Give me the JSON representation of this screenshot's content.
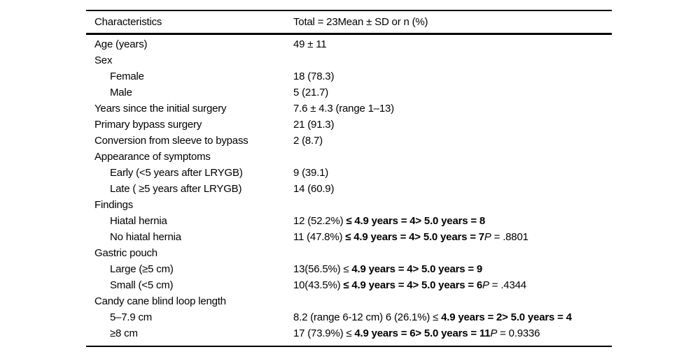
{
  "colors": {
    "background": "#ffffff",
    "text": "#000000",
    "rule": "#000000"
  },
  "table": {
    "header": {
      "col1": "Characteristics",
      "col2": "Total = 23Mean ± SD or n (%)"
    },
    "rows": [
      {
        "label": "Age (years)",
        "indent": 0,
        "value": [
          {
            "text": "49 ± 11"
          }
        ]
      },
      {
        "label": "Sex",
        "indent": 0,
        "value": []
      },
      {
        "label": "Female",
        "indent": 1,
        "value": [
          {
            "text": "18 (78.3)"
          }
        ]
      },
      {
        "label": "Male",
        "indent": 1,
        "value": [
          {
            "text": "5 (21.7)"
          }
        ]
      },
      {
        "label": "Years since the initial surgery",
        "indent": 0,
        "value": [
          {
            "text": "7.6 ± 4.3 (range 1–13)"
          }
        ]
      },
      {
        "label": "Primary bypass surgery",
        "indent": 0,
        "value": [
          {
            "text": "21 (91.3)"
          }
        ]
      },
      {
        "label": "Conversion from sleeve to bypass",
        "indent": 0,
        "value": [
          {
            "text": "2 (8.7)"
          }
        ]
      },
      {
        "label": "Appearance of symptoms",
        "indent": 0,
        "value": []
      },
      {
        "label": "Early (<5 years after LRYGB)",
        "indent": 1,
        "value": [
          {
            "text": "9 (39.1)"
          }
        ]
      },
      {
        "label": "Late ( ≥5 years after LRYGB)",
        "indent": 1,
        "value": [
          {
            "text": "14 (60.9)"
          }
        ]
      },
      {
        "label": "Findings",
        "indent": 0,
        "value": []
      },
      {
        "label": "Hiatal hernia",
        "indent": 1,
        "value": [
          {
            "text": "12 (52.2%) "
          },
          {
            "text": "≤ 4.9 years = 4> 5.0 years = 8",
            "bold": true
          }
        ]
      },
      {
        "label": "No hiatal hernia",
        "indent": 1,
        "value": [
          {
            "text": "11 (47.8%) "
          },
          {
            "text": "≤ 4.9 years = 4> 5.0 years = 7",
            "bold": true
          },
          {
            "text": "P",
            "italic": true
          },
          {
            "text": " = .8801"
          }
        ]
      },
      {
        "label": "Gastric pouch",
        "indent": 0,
        "value": []
      },
      {
        "label": "Large (≥5 cm)",
        "indent": 1,
        "value": [
          {
            "text": "13(56.5%) ≤ "
          },
          {
            "text": "4.9 years = 4> 5.0 years = 9",
            "bold": true
          }
        ]
      },
      {
        "label": "Small (<5 cm)",
        "indent": 1,
        "value": [
          {
            "text": "10(43.5%) "
          },
          {
            "text": "≤ 4.9 years = 4> 5.0 years = 6",
            "bold": true
          },
          {
            "text": "P",
            "italic": true
          },
          {
            "text": " = .4344"
          }
        ]
      },
      {
        "label": "Candy cane blind loop length",
        "indent": 0,
        "value": []
      },
      {
        "label": "5–7.9 cm",
        "indent": 1,
        "value": [
          {
            "text": "8.2 (range 6-12 cm) 6 (26.1%) ≤ "
          },
          {
            "text": "4.9 years = 2> 5.0 years = 4",
            "bold": true
          }
        ]
      },
      {
        "label": "≥8 cm",
        "indent": 1,
        "value": [
          {
            "text": "17 (73.9%) ≤ "
          },
          {
            "text": "4.9 years = 6> 5.0 years = 11",
            "bold": true
          },
          {
            "text": "P",
            "italic": true
          },
          {
            "text": " = 0.9336"
          }
        ]
      }
    ]
  }
}
